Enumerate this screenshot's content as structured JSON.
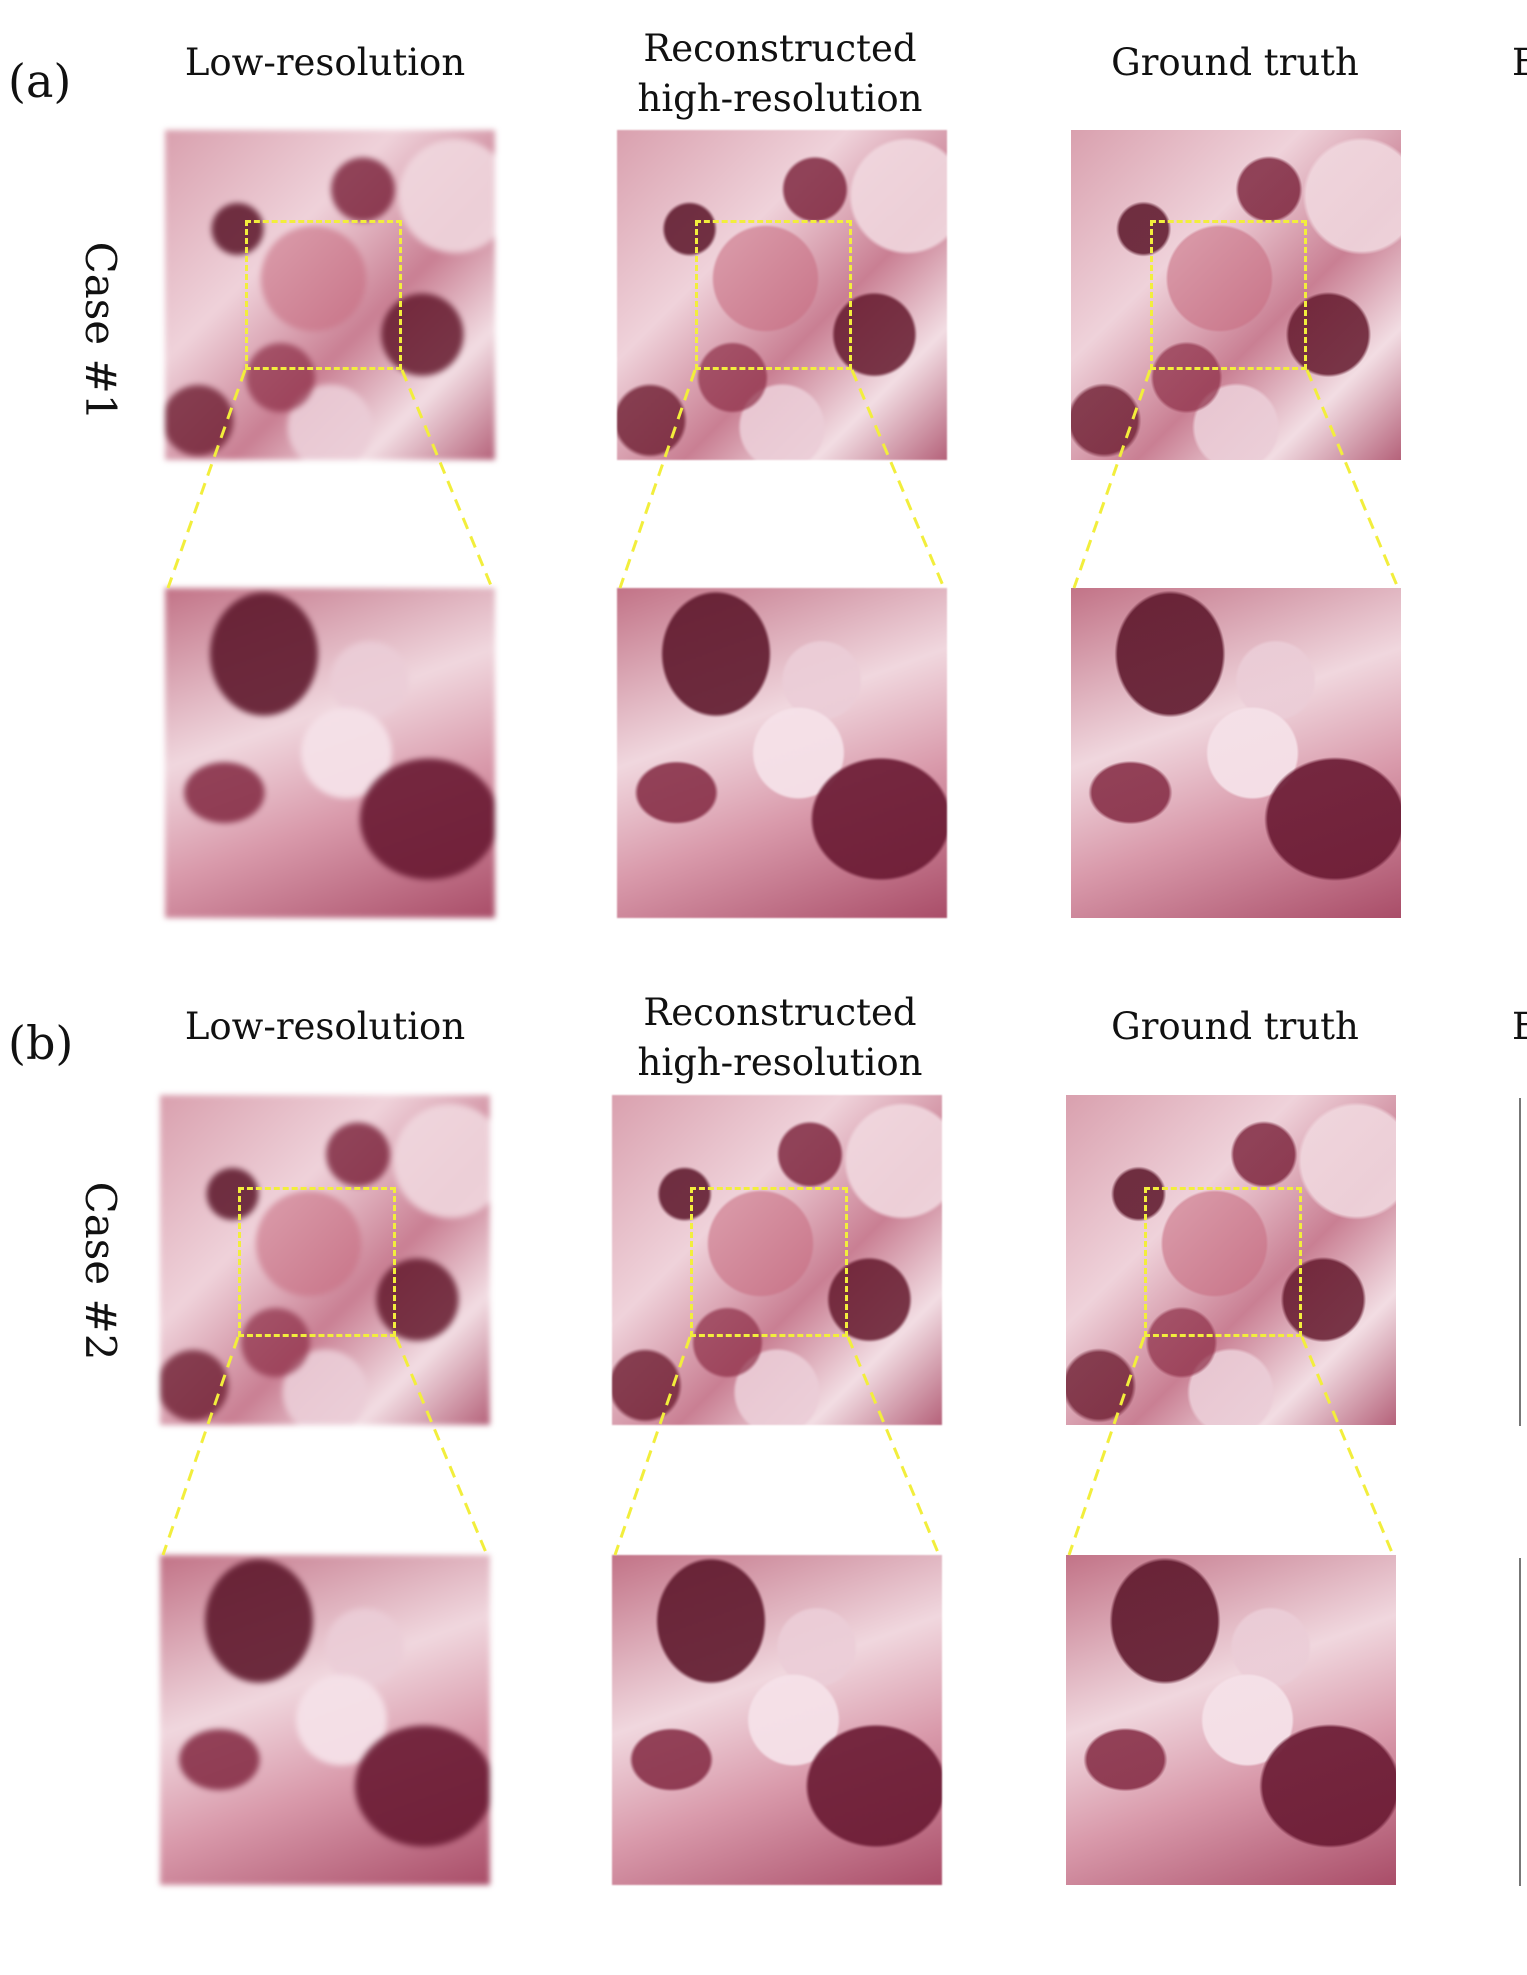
{
  "panels": [
    {
      "label": "(a)",
      "case_label": "Case #1",
      "columns": [
        {
          "title_line1": "Low-resolution",
          "title_line2": ""
        },
        {
          "title_line1": "Reconstructed",
          "title_line2": "high-resolution"
        },
        {
          "title_line1": "Ground truth",
          "title_line2": ""
        }
      ],
      "cut_column_title": "E"
    },
    {
      "label": "(b)",
      "case_label": "Case #2",
      "columns": [
        {
          "title_line1": "Low-resolution",
          "title_line2": ""
        },
        {
          "title_line1": "Reconstructed",
          "title_line2": "high-resolution"
        },
        {
          "title_line1": "Ground truth",
          "title_line2": ""
        }
      ],
      "cut_column_title": "E"
    }
  ],
  "colors": {
    "roi_box": "#f2ee3c",
    "tissue_dark": "#6e1f37",
    "tissue_light": "#f2dde3"
  }
}
